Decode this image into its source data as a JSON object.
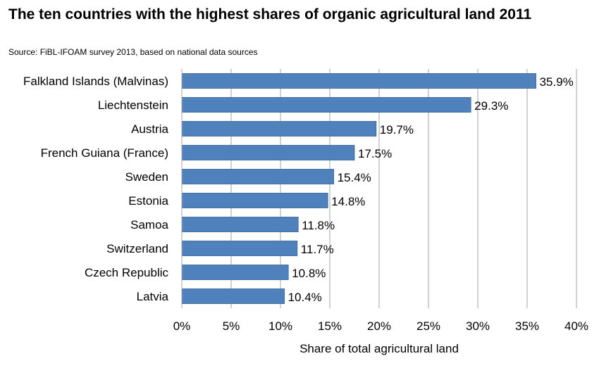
{
  "chart_data": {
    "type": "bar",
    "orientation": "horizontal",
    "title": "The ten countries with the highest shares of organic agricultural land 2011",
    "subtitle": "Source: FiBL-IFOAM survey 2013, based on national data sources",
    "categories": [
      "Falkland Islands (Malvinas)",
      "Liechtenstein",
      "Austria",
      "French Guiana (France)",
      "Sweden",
      "Estonia",
      "Samoa",
      "Switzerland",
      "Czech Republic",
      "Latvia"
    ],
    "values": [
      35.9,
      29.3,
      19.7,
      17.5,
      15.4,
      14.8,
      11.8,
      11.7,
      10.8,
      10.4
    ],
    "value_labels": [
      "35.9%",
      "29.3%",
      "19.7%",
      "17.5%",
      "15.4%",
      "14.8%",
      "11.8%",
      "11.7%",
      "10.8%",
      "10.4%"
    ],
    "xlabel": "Share of total agricultural land",
    "ylabel": "",
    "xlim": [
      0,
      40
    ],
    "x_ticks": [
      0,
      5,
      10,
      15,
      20,
      25,
      30,
      35,
      40
    ],
    "x_tick_labels": [
      "0%",
      "5%",
      "10%",
      "15%",
      "20%",
      "25%",
      "30%",
      "35%",
      "40%"
    ],
    "grid": "vertical",
    "legend": "none",
    "bar_color": "#4f81bd",
    "bar_edge_color": "#3a6796",
    "grid_color": "#a6a6a6"
  }
}
